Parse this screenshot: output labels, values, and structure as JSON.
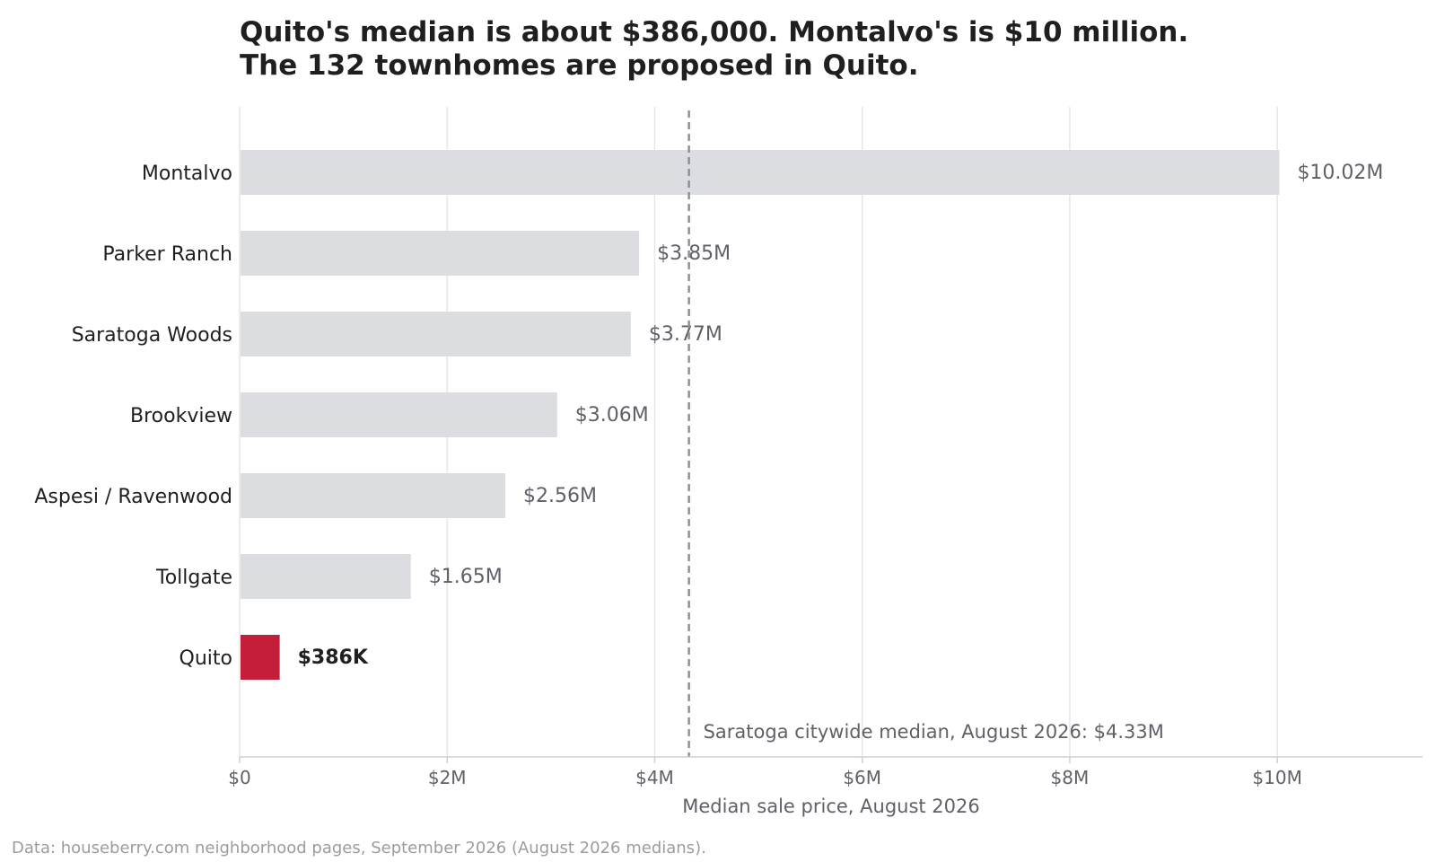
{
  "chart_data": {
    "type": "bar",
    "orientation": "horizontal",
    "title_lines": [
      "Quito's median is about $386,000. Montalvo's is $10 million.",
      "The 132 townhomes are proposed in Quito."
    ],
    "categories": [
      "Montalvo",
      "Parker Ranch",
      "Saratoga Woods",
      "Brookview",
      "Aspesi / Ravenwood",
      "Tollgate",
      "Quito"
    ],
    "values": [
      10.02,
      3.85,
      3.77,
      3.06,
      2.56,
      1.65,
      0.386
    ],
    "value_labels": [
      "$10.02M",
      "$3.85M",
      "$3.77M",
      "$3.06M",
      "$2.56M",
      "$1.65M",
      "$386K"
    ],
    "value_unit": "millions of dollars",
    "highlight": "Quito",
    "xlabel": "Median sale price, August 2026",
    "ylabel": "",
    "xlim": [
      0,
      11.4
    ],
    "xticks": [
      0,
      2,
      4,
      6,
      8,
      10
    ],
    "xtick_labels": [
      "$0",
      "$2M",
      "$4M",
      "$6M",
      "$8M",
      "$10M"
    ],
    "grid": "vertical",
    "reference_line": {
      "value": 4.33,
      "label": "Saratoga citywide median, August 2026: $4.33M",
      "style": "dashed"
    },
    "footnote": "Data: houseberry.com neighborhood pages, September 2026 (August 2026 medians).",
    "colors": {
      "bar": "#dcdde0",
      "highlight": "#c41e3a",
      "grid": "#e6e6e6",
      "axis": "#cfd0d3",
      "reference": "#8e9099"
    }
  }
}
